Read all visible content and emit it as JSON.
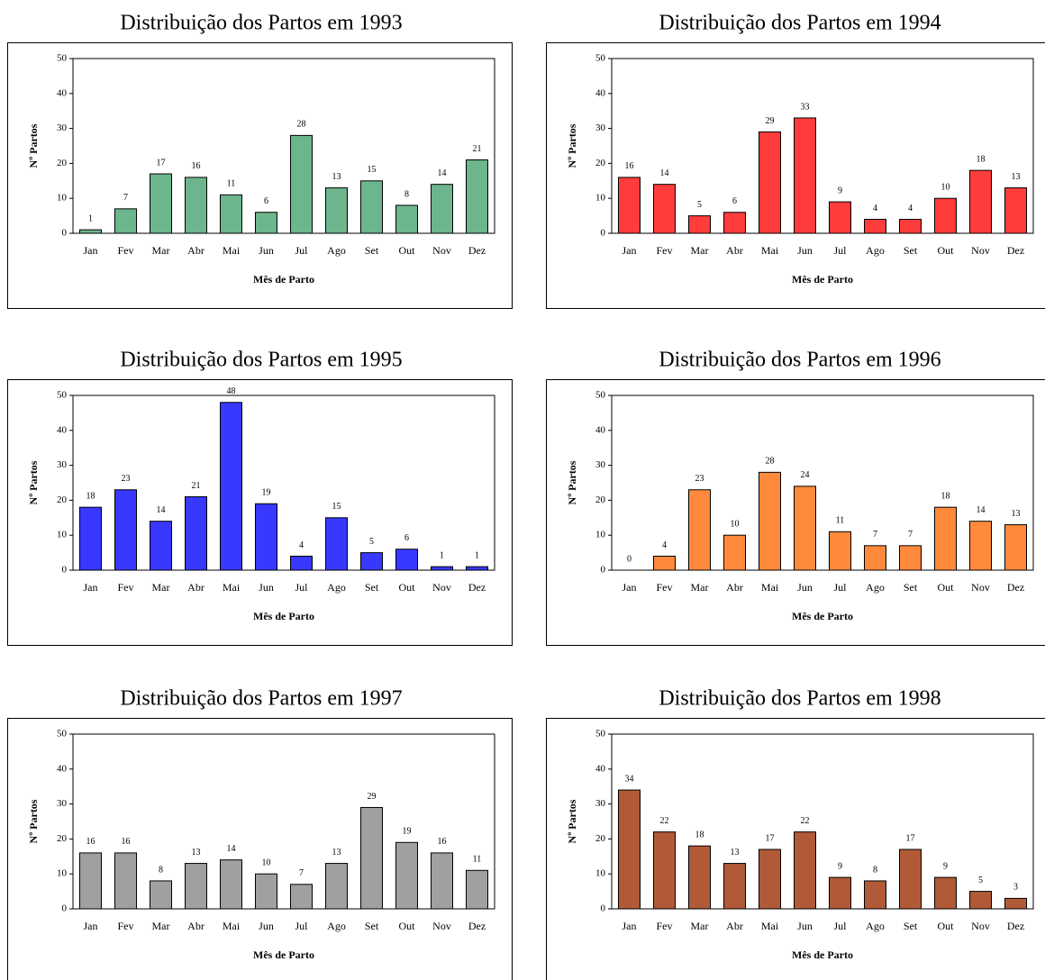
{
  "chart_data": [
    {
      "type": "bar",
      "title": "Distribuição dos Partos em 1993",
      "ylabel": "Nº Partos",
      "xlabel": "Mês de Parto",
      "categories": [
        "Jan",
        "Fev",
        "Mar",
        "Abr",
        "Mai",
        "Jun",
        "Jul",
        "Ago",
        "Set",
        "Out",
        "Nov",
        "Dez"
      ],
      "values": [
        1,
        7,
        17,
        16,
        11,
        6,
        28,
        13,
        15,
        8,
        14,
        21
      ],
      "color": "#6db58c",
      "ylim": [
        0,
        50
      ],
      "yticks": [
        0,
        10,
        20,
        30,
        40,
        50
      ]
    },
    {
      "type": "bar",
      "title": "Distribuição dos Partos em 1994",
      "ylabel": "Nº Partos",
      "xlabel": "Mês de Parto",
      "categories": [
        "Jan",
        "Fev",
        "Mar",
        "Abr",
        "Mai",
        "Jun",
        "Jul",
        "Ago",
        "Set",
        "Out",
        "Nov",
        "Dez"
      ],
      "values": [
        16,
        14,
        5,
        6,
        29,
        33,
        9,
        4,
        4,
        10,
        18,
        13
      ],
      "color": "#ff3c3c",
      "ylim": [
        0,
        50
      ],
      "yticks": [
        0,
        10,
        20,
        30,
        40,
        50
      ]
    },
    {
      "type": "bar",
      "title": "Distribuição dos Partos em 1995",
      "ylabel": "Nº Partos",
      "xlabel": "Mês de Parto",
      "categories": [
        "Jan",
        "Fev",
        "Mar",
        "Abr",
        "Mai",
        "Jun",
        "Jul",
        "Ago",
        "Set",
        "Out",
        "Nov",
        "Dez"
      ],
      "values": [
        18,
        23,
        14,
        21,
        48,
        19,
        4,
        15,
        5,
        6,
        1,
        1
      ],
      "color": "#3838ff",
      "ylim": [
        0,
        50
      ],
      "yticks": [
        0,
        10,
        20,
        30,
        40,
        50
      ]
    },
    {
      "type": "bar",
      "title": "Distribuição dos Partos em 1996",
      "ylabel": "Nº Partos",
      "xlabel": "Mês de Parto",
      "categories": [
        "Jan",
        "Fev",
        "Mar",
        "Abr",
        "Mai",
        "Jun",
        "Jul",
        "Ago",
        "Set",
        "Out",
        "Nov",
        "Dez"
      ],
      "values": [
        0,
        4,
        23,
        10,
        28,
        24,
        11,
        7,
        7,
        18,
        14,
        13
      ],
      "color": "#ff8a3c",
      "ylim": [
        0,
        50
      ],
      "yticks": [
        0,
        10,
        20,
        30,
        40,
        50
      ]
    },
    {
      "type": "bar",
      "title": "Distribuição dos Partos em 1997",
      "ylabel": "Nº Partos",
      "xlabel": "Mês de Parto",
      "categories": [
        "Jan",
        "Fev",
        "Mar",
        "Abr",
        "Mai",
        "Jun",
        "Jul",
        "Ago",
        "Set",
        "Out",
        "Nov",
        "Dez"
      ],
      "values": [
        16,
        16,
        8,
        13,
        14,
        10,
        7,
        13,
        29,
        19,
        16,
        11
      ],
      "color": "#a0a0a0",
      "ylim": [
        0,
        50
      ],
      "yticks": [
        0,
        10,
        20,
        30,
        40,
        50
      ]
    },
    {
      "type": "bar",
      "title": "Distribuição dos Partos em 1998",
      "ylabel": "Nº Partos",
      "xlabel": "Mês de Parto",
      "categories": [
        "Jan",
        "Fev",
        "Mar",
        "Abr",
        "Mai",
        "Jun",
        "Jul",
        "Ago",
        "Set",
        "Out",
        "Nov",
        "Dez"
      ],
      "values": [
        34,
        22,
        18,
        13,
        17,
        22,
        9,
        8,
        17,
        9,
        5,
        3
      ],
      "color": "#b05a38",
      "ylim": [
        0,
        50
      ],
      "yticks": [
        0,
        10,
        20,
        30,
        40,
        50
      ]
    }
  ]
}
